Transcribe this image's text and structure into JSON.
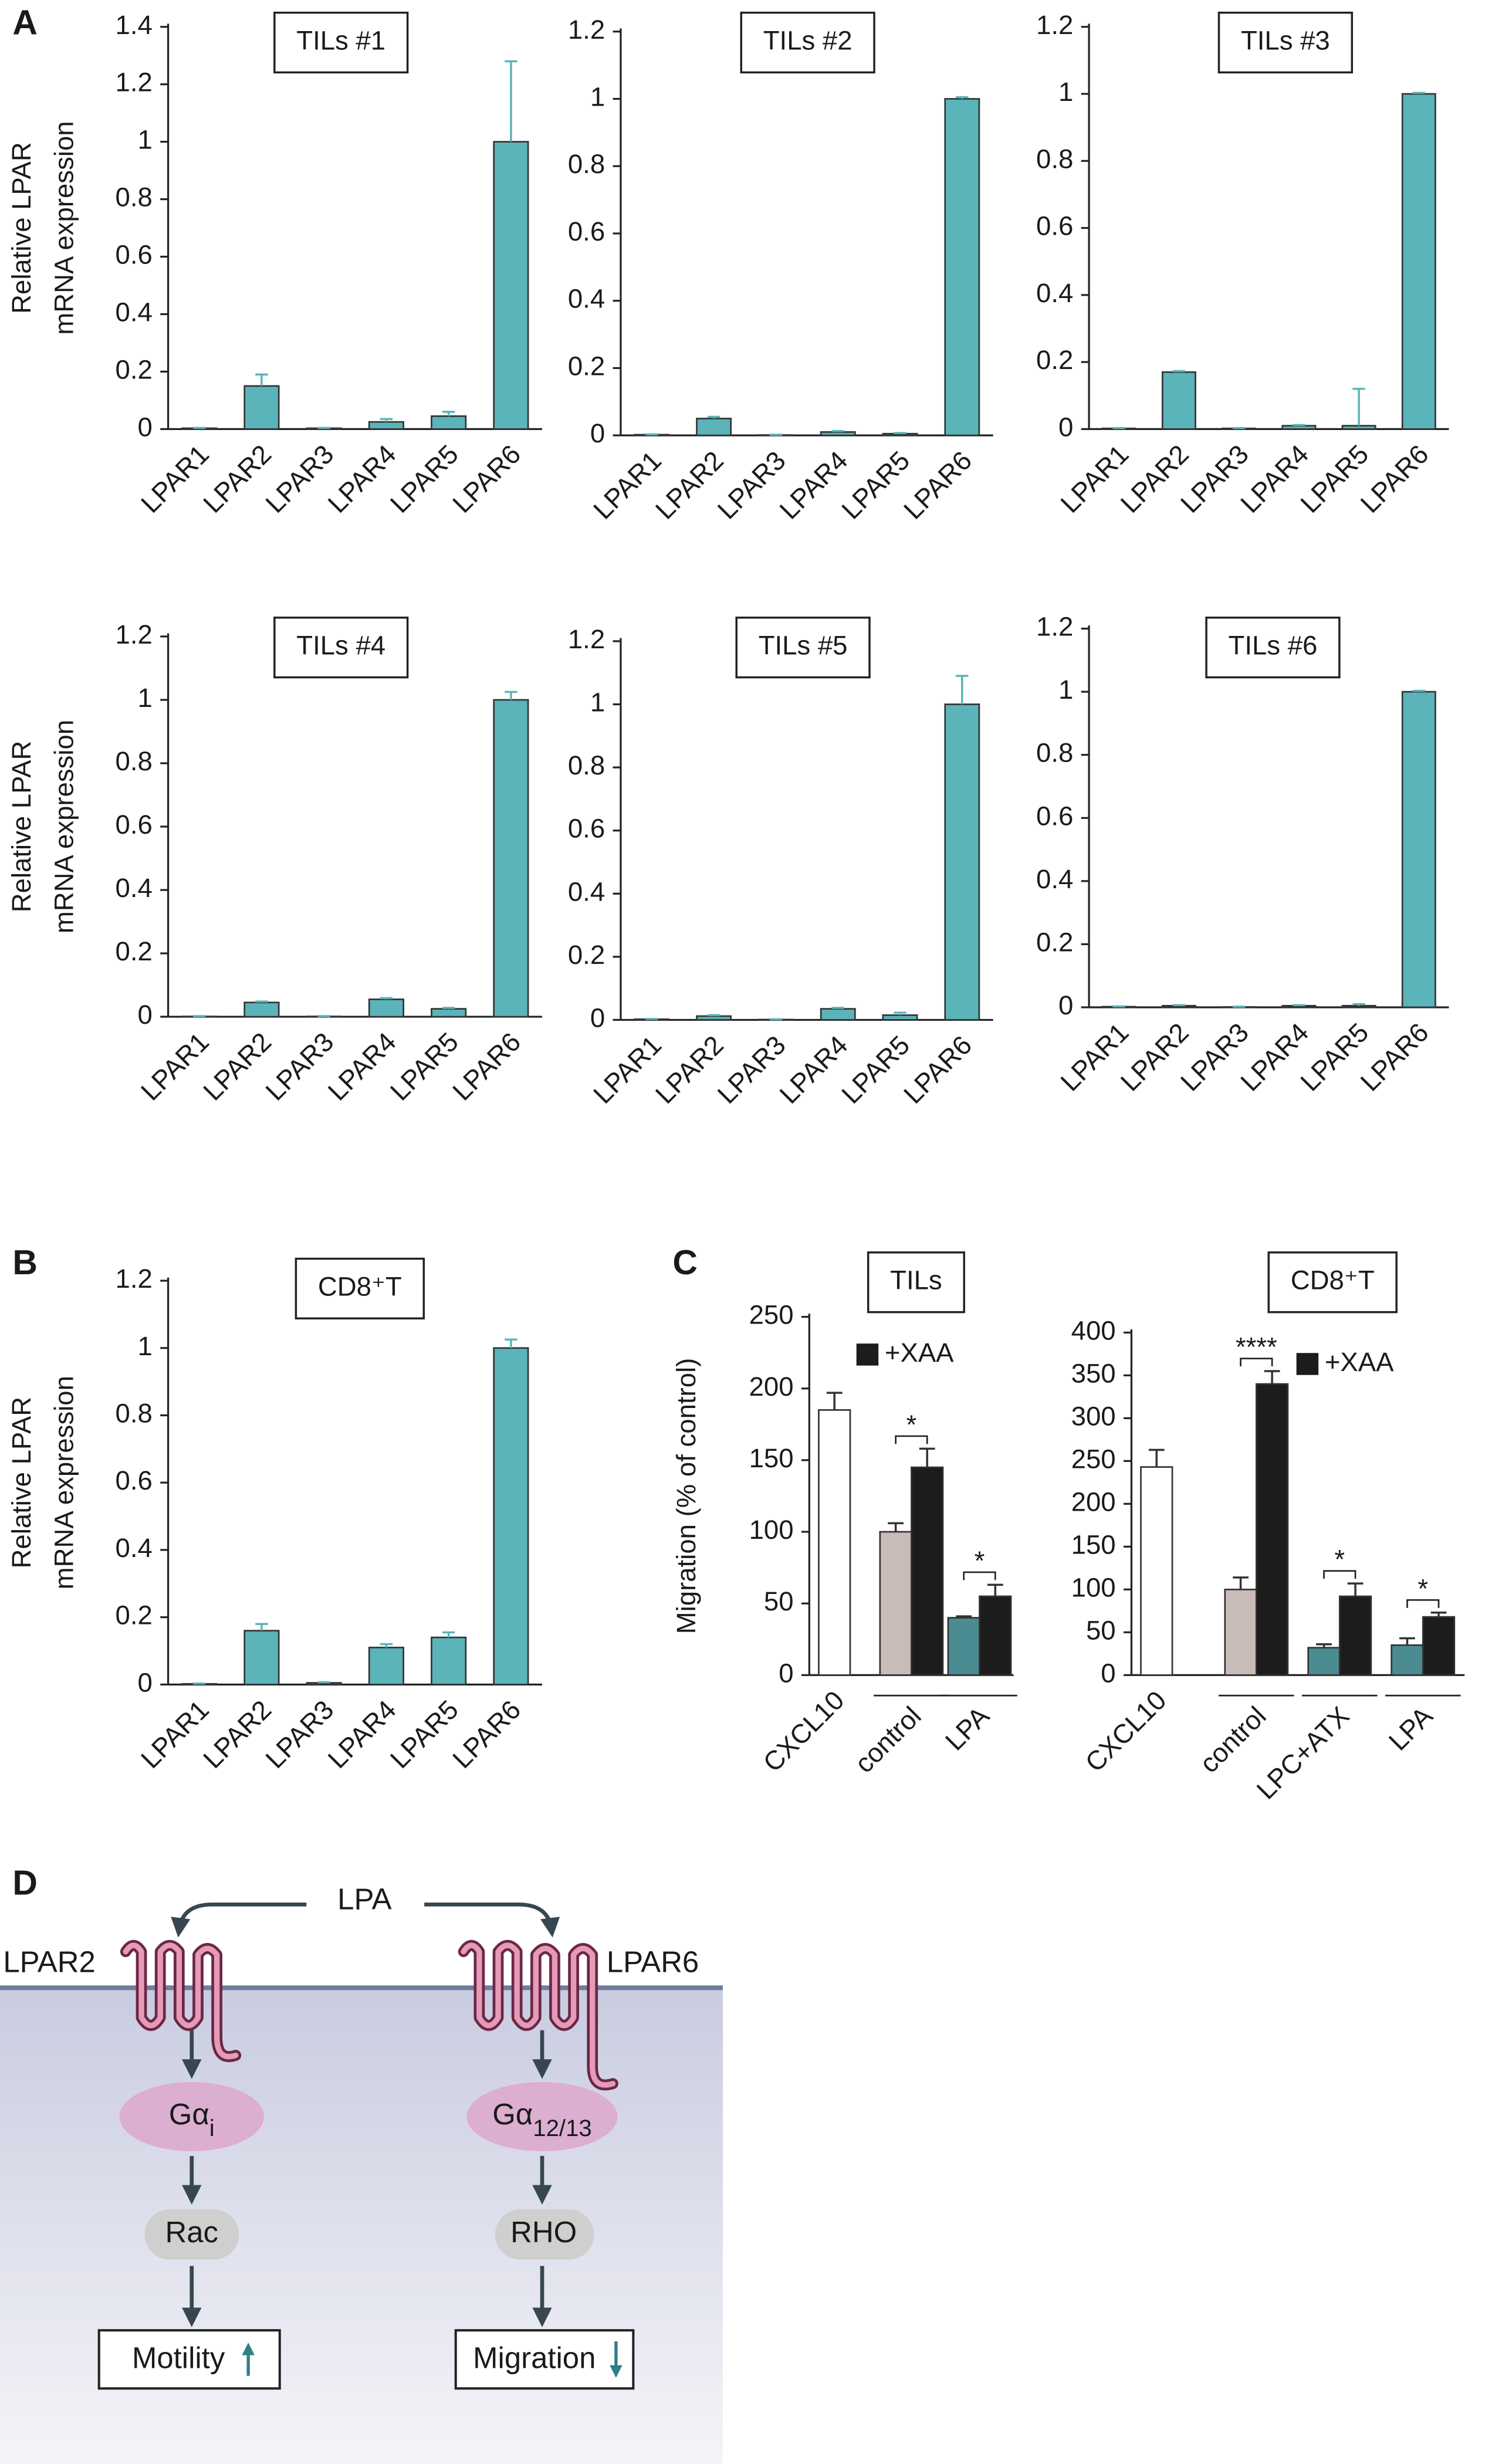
{
  "panels": [
    "A",
    "B",
    "C",
    "D"
  ],
  "chart_data": [
    {
      "type": "bar",
      "title": "TILs #1",
      "ylabel": [
        "Relative LPAR",
        "mRNA expression"
      ],
      "categories": [
        "LPAR1",
        "LPAR2",
        "LPAR3",
        "LPAR4",
        "LPAR5",
        "LPAR6"
      ],
      "values": [
        0.003,
        0.15,
        0.003,
        0.025,
        0.045,
        1.0
      ],
      "errors": [
        0.001,
        0.04,
        0.001,
        0.01,
        0.015,
        0.28
      ],
      "color": "#5ab4b9",
      "ylim": [
        0,
        1.4
      ],
      "yticks": [
        0,
        0.2,
        0.4,
        0.6,
        0.8,
        1,
        1.2,
        1.4
      ]
    },
    {
      "type": "bar",
      "title": "TILs #2",
      "categories": [
        "LPAR1",
        "LPAR2",
        "LPAR3",
        "LPAR4",
        "LPAR5",
        "LPAR6"
      ],
      "values": [
        0.002,
        0.05,
        0.001,
        0.01,
        0.005,
        1.0
      ],
      "errors": [
        0.001,
        0.005,
        0.001,
        0.003,
        0.002,
        0.005
      ],
      "color": "#5ab4b9",
      "ylim": [
        0,
        1.2
      ],
      "yticks": [
        0,
        0.2,
        0.4,
        0.6,
        0.8,
        1,
        1.2
      ]
    },
    {
      "type": "bar",
      "title": "TILs #3",
      "categories": [
        "LPAR1",
        "LPAR2",
        "LPAR3",
        "LPAR4",
        "LPAR5",
        "LPAR6"
      ],
      "values": [
        0.002,
        0.17,
        0.002,
        0.01,
        0.01,
        1.0
      ],
      "errors": [
        0.001,
        0.003,
        0.001,
        0.002,
        0.11,
        0.003
      ],
      "color": "#5ab4b9",
      "ylim": [
        0,
        1.2
      ],
      "yticks": [
        0,
        0.2,
        0.4,
        0.6,
        0.8,
        1,
        1.2
      ]
    },
    {
      "type": "bar",
      "title": "TILs #4",
      "ylabel": [
        "Relative LPAR",
        "mRNA expression"
      ],
      "categories": [
        "LPAR1",
        "LPAR2",
        "LPAR3",
        "LPAR4",
        "LPAR5",
        "LPAR6"
      ],
      "values": [
        0.001,
        0.045,
        0.001,
        0.055,
        0.025,
        1.0
      ],
      "errors": [
        0.001,
        0.003,
        0.001,
        0.004,
        0.003,
        0.025
      ],
      "color": "#5ab4b9",
      "ylim": [
        0,
        1.2
      ],
      "yticks": [
        0,
        0.2,
        0.4,
        0.6,
        0.8,
        1,
        1.2
      ]
    },
    {
      "type": "bar",
      "title": "TILs #5",
      "categories": [
        "LPAR1",
        "LPAR2",
        "LPAR3",
        "LPAR4",
        "LPAR5",
        "LPAR6"
      ],
      "values": [
        0.002,
        0.012,
        0.001,
        0.035,
        0.015,
        1.0
      ],
      "errors": [
        0.001,
        0.003,
        0.001,
        0.003,
        0.008,
        0.09
      ],
      "color": "#5ab4b9",
      "ylim": [
        0,
        1.2
      ],
      "yticks": [
        0,
        0.2,
        0.4,
        0.6,
        0.8,
        1,
        1.2
      ]
    },
    {
      "type": "bar",
      "title": "TILs #6",
      "categories": [
        "LPAR1",
        "LPAR2",
        "LPAR3",
        "LPAR4",
        "LPAR5",
        "LPAR6"
      ],
      "values": [
        0.002,
        0.005,
        0.001,
        0.005,
        0.005,
        1.0
      ],
      "errors": [
        0.001,
        0.002,
        0.001,
        0.002,
        0.005,
        0.003
      ],
      "color": "#5ab4b9",
      "ylim": [
        0,
        1.2
      ],
      "yticks": [
        0,
        0.2,
        0.4,
        0.6,
        0.8,
        1,
        1.2
      ]
    },
    {
      "type": "bar",
      "title": "CD8⁺T",
      "ylabel": [
        "Relative LPAR",
        "mRNA expression"
      ],
      "categories": [
        "LPAR1",
        "LPAR2",
        "LPAR3",
        "LPAR4",
        "LPAR5",
        "LPAR6"
      ],
      "values": [
        0.002,
        0.16,
        0.005,
        0.11,
        0.14,
        1.0
      ],
      "errors": [
        0.001,
        0.02,
        0.002,
        0.01,
        0.015,
        0.025
      ],
      "color": "#5ab4b9",
      "ylim": [
        0,
        1.2
      ],
      "yticks": [
        0,
        0.2,
        0.4,
        0.6,
        0.8,
        1,
        1.2
      ]
    },
    {
      "type": "bar",
      "title": "TILs",
      "ylabel": [
        "Migration (% of control)"
      ],
      "categories": [
        "CXCL10",
        "control",
        "LPA"
      ],
      "series": [
        {
          "colors": [
            "#ffffff",
            "#c9bcb8",
            "#4a8c92"
          ],
          "values": [
            185,
            100,
            40
          ],
          "errors": [
            12,
            6,
            1
          ]
        },
        {
          "name": "+XAA",
          "color": "#1c1c1c",
          "values": [
            null,
            145,
            55
          ],
          "errors": [
            null,
            13,
            8
          ]
        }
      ],
      "significance": [
        null,
        "*",
        "*"
      ],
      "ylim": [
        0,
        250
      ],
      "yticks": [
        0,
        50,
        100,
        150,
        200,
        250
      ]
    },
    {
      "type": "bar",
      "title": "CD8⁺T",
      "categories": [
        "CXCL10",
        "control",
        "LPC+ATX",
        "LPA"
      ],
      "series": [
        {
          "colors": [
            "#ffffff",
            "#c9bcb8",
            "#4a8c92",
            "#4a8c92"
          ],
          "values": [
            243,
            100,
            32,
            35
          ],
          "errors": [
            20,
            14,
            4,
            8
          ]
        },
        {
          "name": "+XAA",
          "color": "#1c1c1c",
          "values": [
            null,
            340,
            92,
            68
          ],
          "errors": [
            null,
            15,
            15,
            5
          ]
        }
      ],
      "significance": [
        null,
        "****",
        "*",
        "*"
      ],
      "ylim": [
        0,
        400
      ],
      "yticks": [
        0,
        50,
        100,
        150,
        200,
        250,
        300,
        350,
        400
      ]
    }
  ],
  "diagram": {
    "ligand": "LPA",
    "receptors": [
      "LPAR2",
      "LPAR6"
    ],
    "g_proteins": [
      {
        "name": "Gα",
        "sub": "i"
      },
      {
        "name": "Gα",
        "sub": "12/13"
      }
    ],
    "gtpases": [
      "Rac",
      "RHO"
    ],
    "outcomes": [
      "Motility",
      "Migration"
    ]
  }
}
